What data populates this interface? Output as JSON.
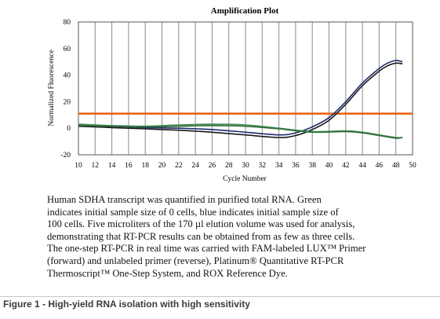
{
  "chart_data": {
    "type": "line",
    "title": "Amplification Plot",
    "xlabel": "Cycle Number",
    "ylabel": "Normalized Fluorescence",
    "xlim": [
      10,
      50
    ],
    "ylim": [
      -20,
      80
    ],
    "xticks": [
      10,
      12,
      14,
      16,
      18,
      20,
      22,
      24,
      26,
      28,
      30,
      32,
      34,
      36,
      38,
      40,
      42,
      44,
      46,
      48,
      50
    ],
    "yticks": [
      80,
      60,
      40,
      20,
      0,
      -20
    ],
    "grid": "vertical",
    "threshold": {
      "value": 11,
      "color": "#e8600f"
    },
    "series": [
      {
        "color": "#1f2a6e",
        "x": [
          10,
          14,
          18,
          22,
          26,
          30,
          34,
          36,
          38,
          40,
          42,
          44,
          46,
          47,
          48,
          48.8
        ],
        "y": [
          2,
          1.5,
          0.5,
          0,
          -1,
          -3,
          -5,
          -3.5,
          1,
          8,
          20,
          34,
          45,
          49,
          51,
          50
        ]
      },
      {
        "color": "#1a1a1a",
        "x": [
          10,
          14,
          18,
          22,
          26,
          30,
          34,
          36,
          38,
          40,
          42,
          44,
          46,
          47,
          48,
          48.8
        ],
        "y": [
          1.5,
          0.5,
          -0.5,
          -1.5,
          -3,
          -5,
          -7,
          -5.5,
          -1,
          6,
          18,
          32,
          43,
          47,
          49,
          48.5
        ]
      },
      {
        "color": "#3f8a52",
        "x": [
          10,
          14,
          18,
          22,
          26,
          30,
          34,
          38,
          42,
          44,
          46,
          48,
          48.8
        ],
        "y": [
          3,
          2,
          1.5,
          2.5,
          3,
          2.5,
          0,
          -2.5,
          -2,
          -3,
          -5,
          -7,
          -7
        ]
      },
      {
        "color": "#2e6e3a",
        "x": [
          10,
          14,
          18,
          22,
          26,
          30,
          34,
          38,
          42,
          44,
          46,
          48,
          48.8
        ],
        "y": [
          2,
          1.5,
          1,
          1.5,
          2,
          1.5,
          -0.5,
          -3,
          -2.5,
          -3.5,
          -5.5,
          -7.5,
          -7
        ]
      }
    ]
  },
  "caption_lines": [
    "Human SDHA transcript was quantified in purified total RNA. Green",
    "indicates initial sample size of 0 cells, blue indicates initial sample size of",
    "100 cells. Five microliters of the 170 µl elution volume was used for analysis,",
    "demonstrating that RT-PCR results can be obtained from as few as three cells.",
    "The one-step RT-PCR in real time was carried with FAM-labeled LUX™ Primer",
    "(forward) and unlabeled primer (reverse), Platinum® Quantitative RT-PCR",
    "Thermoscript™ One-Step System, and ROX Reference Dye."
  ],
  "figure_label": "Figure 1 - High-yield RNA isolation with high sensitivity"
}
